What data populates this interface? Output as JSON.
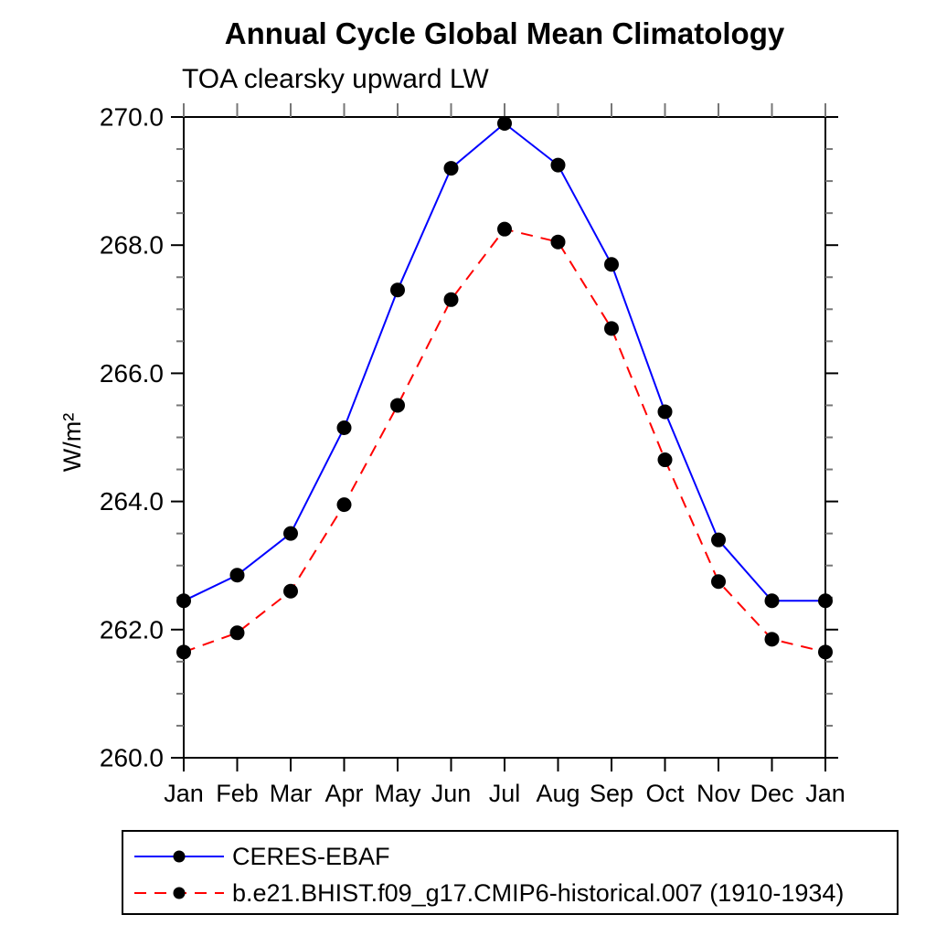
{
  "header": {
    "title": "Annual Cycle Global Mean Climatology",
    "subtitle": "TOA clearsky upward LW"
  },
  "chart_data": {
    "type": "line",
    "title": "Annual Cycle Global Mean Climatology",
    "subtitle": "TOA clearsky upward LW",
    "xlabel": "",
    "ylabel": "W/m²",
    "categories": [
      "Jan",
      "Feb",
      "Mar",
      "Apr",
      "May",
      "Jun",
      "Jul",
      "Aug",
      "Sep",
      "Oct",
      "Nov",
      "Dec",
      "Jan"
    ],
    "series": [
      {
        "name": "CERES-EBAF",
        "color": "#0000ff",
        "line_style": "solid",
        "marker": "circle",
        "marker_color": "#000000",
        "values": [
          262.45,
          262.85,
          263.5,
          265.15,
          267.3,
          269.2,
          269.9,
          269.25,
          267.7,
          265.4,
          263.4,
          262.45,
          262.45
        ]
      },
      {
        "name": "b.e21.BHIST.f09_g17.CMIP6-historical.007 (1910-1934)",
        "color": "#ff0000",
        "line_style": "dashed",
        "marker": "circle",
        "marker_color": "#000000",
        "values": [
          261.65,
          261.95,
          262.6,
          263.95,
          265.5,
          267.15,
          268.25,
          268.05,
          266.7,
          264.65,
          262.75,
          261.85,
          261.65
        ]
      }
    ],
    "ylim": [
      260.0,
      270.0
    ],
    "ytick_step": 2.0,
    "yminor_step": 0.5,
    "ytick_format_decimals": 1,
    "grid": false,
    "legend_position": "bottom-left"
  },
  "colors": {
    "axis": "#000000",
    "minor_tick": "#777777",
    "top_tick": "#777777",
    "background": "#ffffff"
  }
}
